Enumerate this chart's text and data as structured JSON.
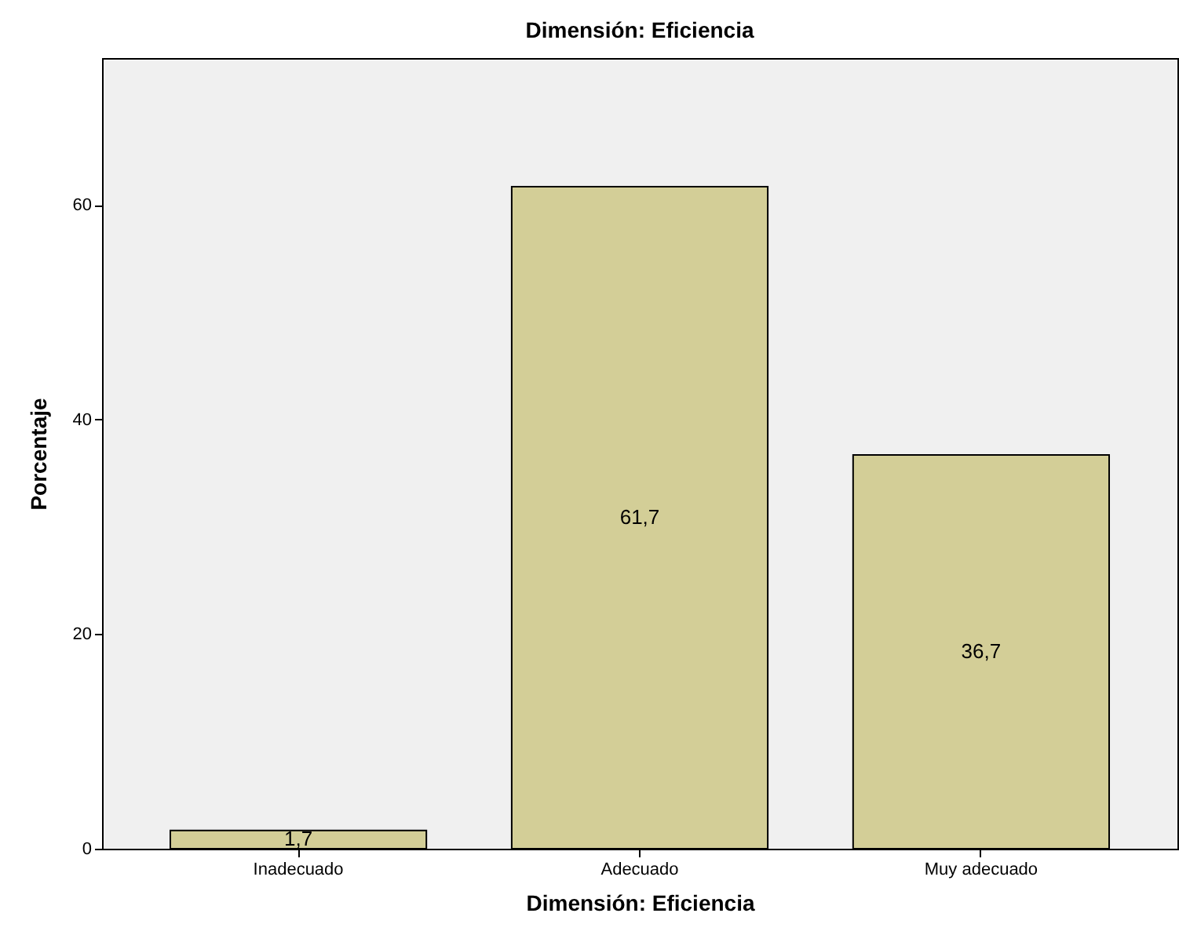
{
  "chart_data": {
    "type": "bar",
    "title": "Dimensión: Eficiencia",
    "xlabel": "Dimensión: Eficiencia",
    "ylabel": "Porcentaje",
    "categories": [
      "Inadecuado",
      "Adecuado",
      "Muy adecuado"
    ],
    "values": [
      1.7,
      61.7,
      36.7
    ],
    "value_labels": [
      "1,7",
      "61,7",
      "36,7"
    ],
    "color": "#d3ce97",
    "ylim": [
      0,
      73.7
    ],
    "yticks": [
      0,
      20,
      40,
      60
    ],
    "grid": false
  }
}
